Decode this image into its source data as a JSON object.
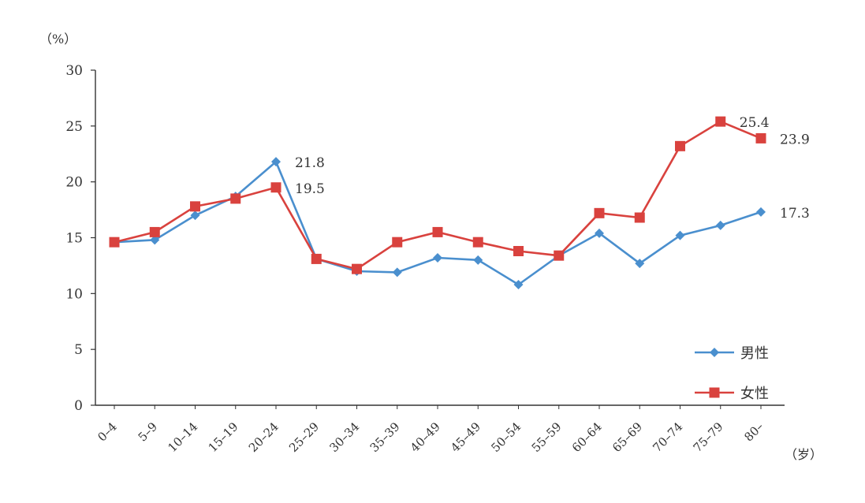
{
  "chart_data": {
    "type": "line",
    "y_unit": "（%）",
    "x_unit": "（岁）",
    "ylim": [
      0,
      30
    ],
    "y_ticks": [
      0,
      5,
      10,
      15,
      20,
      25,
      30
    ],
    "categories": [
      "0–4",
      "5–9",
      "10–14",
      "15–19",
      "20–24",
      "25–29",
      "30–34",
      "35–39",
      "40–49",
      "45–49",
      "50–54",
      "55–59",
      "60–64",
      "65–69",
      "70–74",
      "75–79",
      "80–"
    ],
    "series": [
      {
        "name": "男性",
        "color": "#4a8fce",
        "marker": "diamond",
        "values": [
          14.6,
          14.8,
          17.0,
          18.7,
          21.8,
          13.1,
          12.0,
          11.9,
          13.2,
          13.0,
          10.8,
          13.4,
          15.4,
          12.7,
          15.2,
          16.1,
          17.3
        ]
      },
      {
        "name": "女性",
        "color": "#d9423e",
        "marker": "square",
        "values": [
          14.6,
          15.5,
          17.8,
          18.5,
          19.5,
          13.1,
          12.2,
          14.6,
          15.5,
          14.6,
          13.8,
          13.4,
          17.2,
          16.8,
          23.2,
          25.4,
          23.9
        ]
      }
    ],
    "annotations": [
      {
        "series": 0,
        "index": 4,
        "text": "21.8"
      },
      {
        "series": 1,
        "index": 4,
        "text": "19.5"
      },
      {
        "series": 1,
        "index": 15,
        "text": "25.4"
      },
      {
        "series": 1,
        "index": 16,
        "text": "23.9"
      },
      {
        "series": 0,
        "index": 16,
        "text": "17.3"
      }
    ],
    "legend_position": "bottom-right",
    "grid": false
  }
}
